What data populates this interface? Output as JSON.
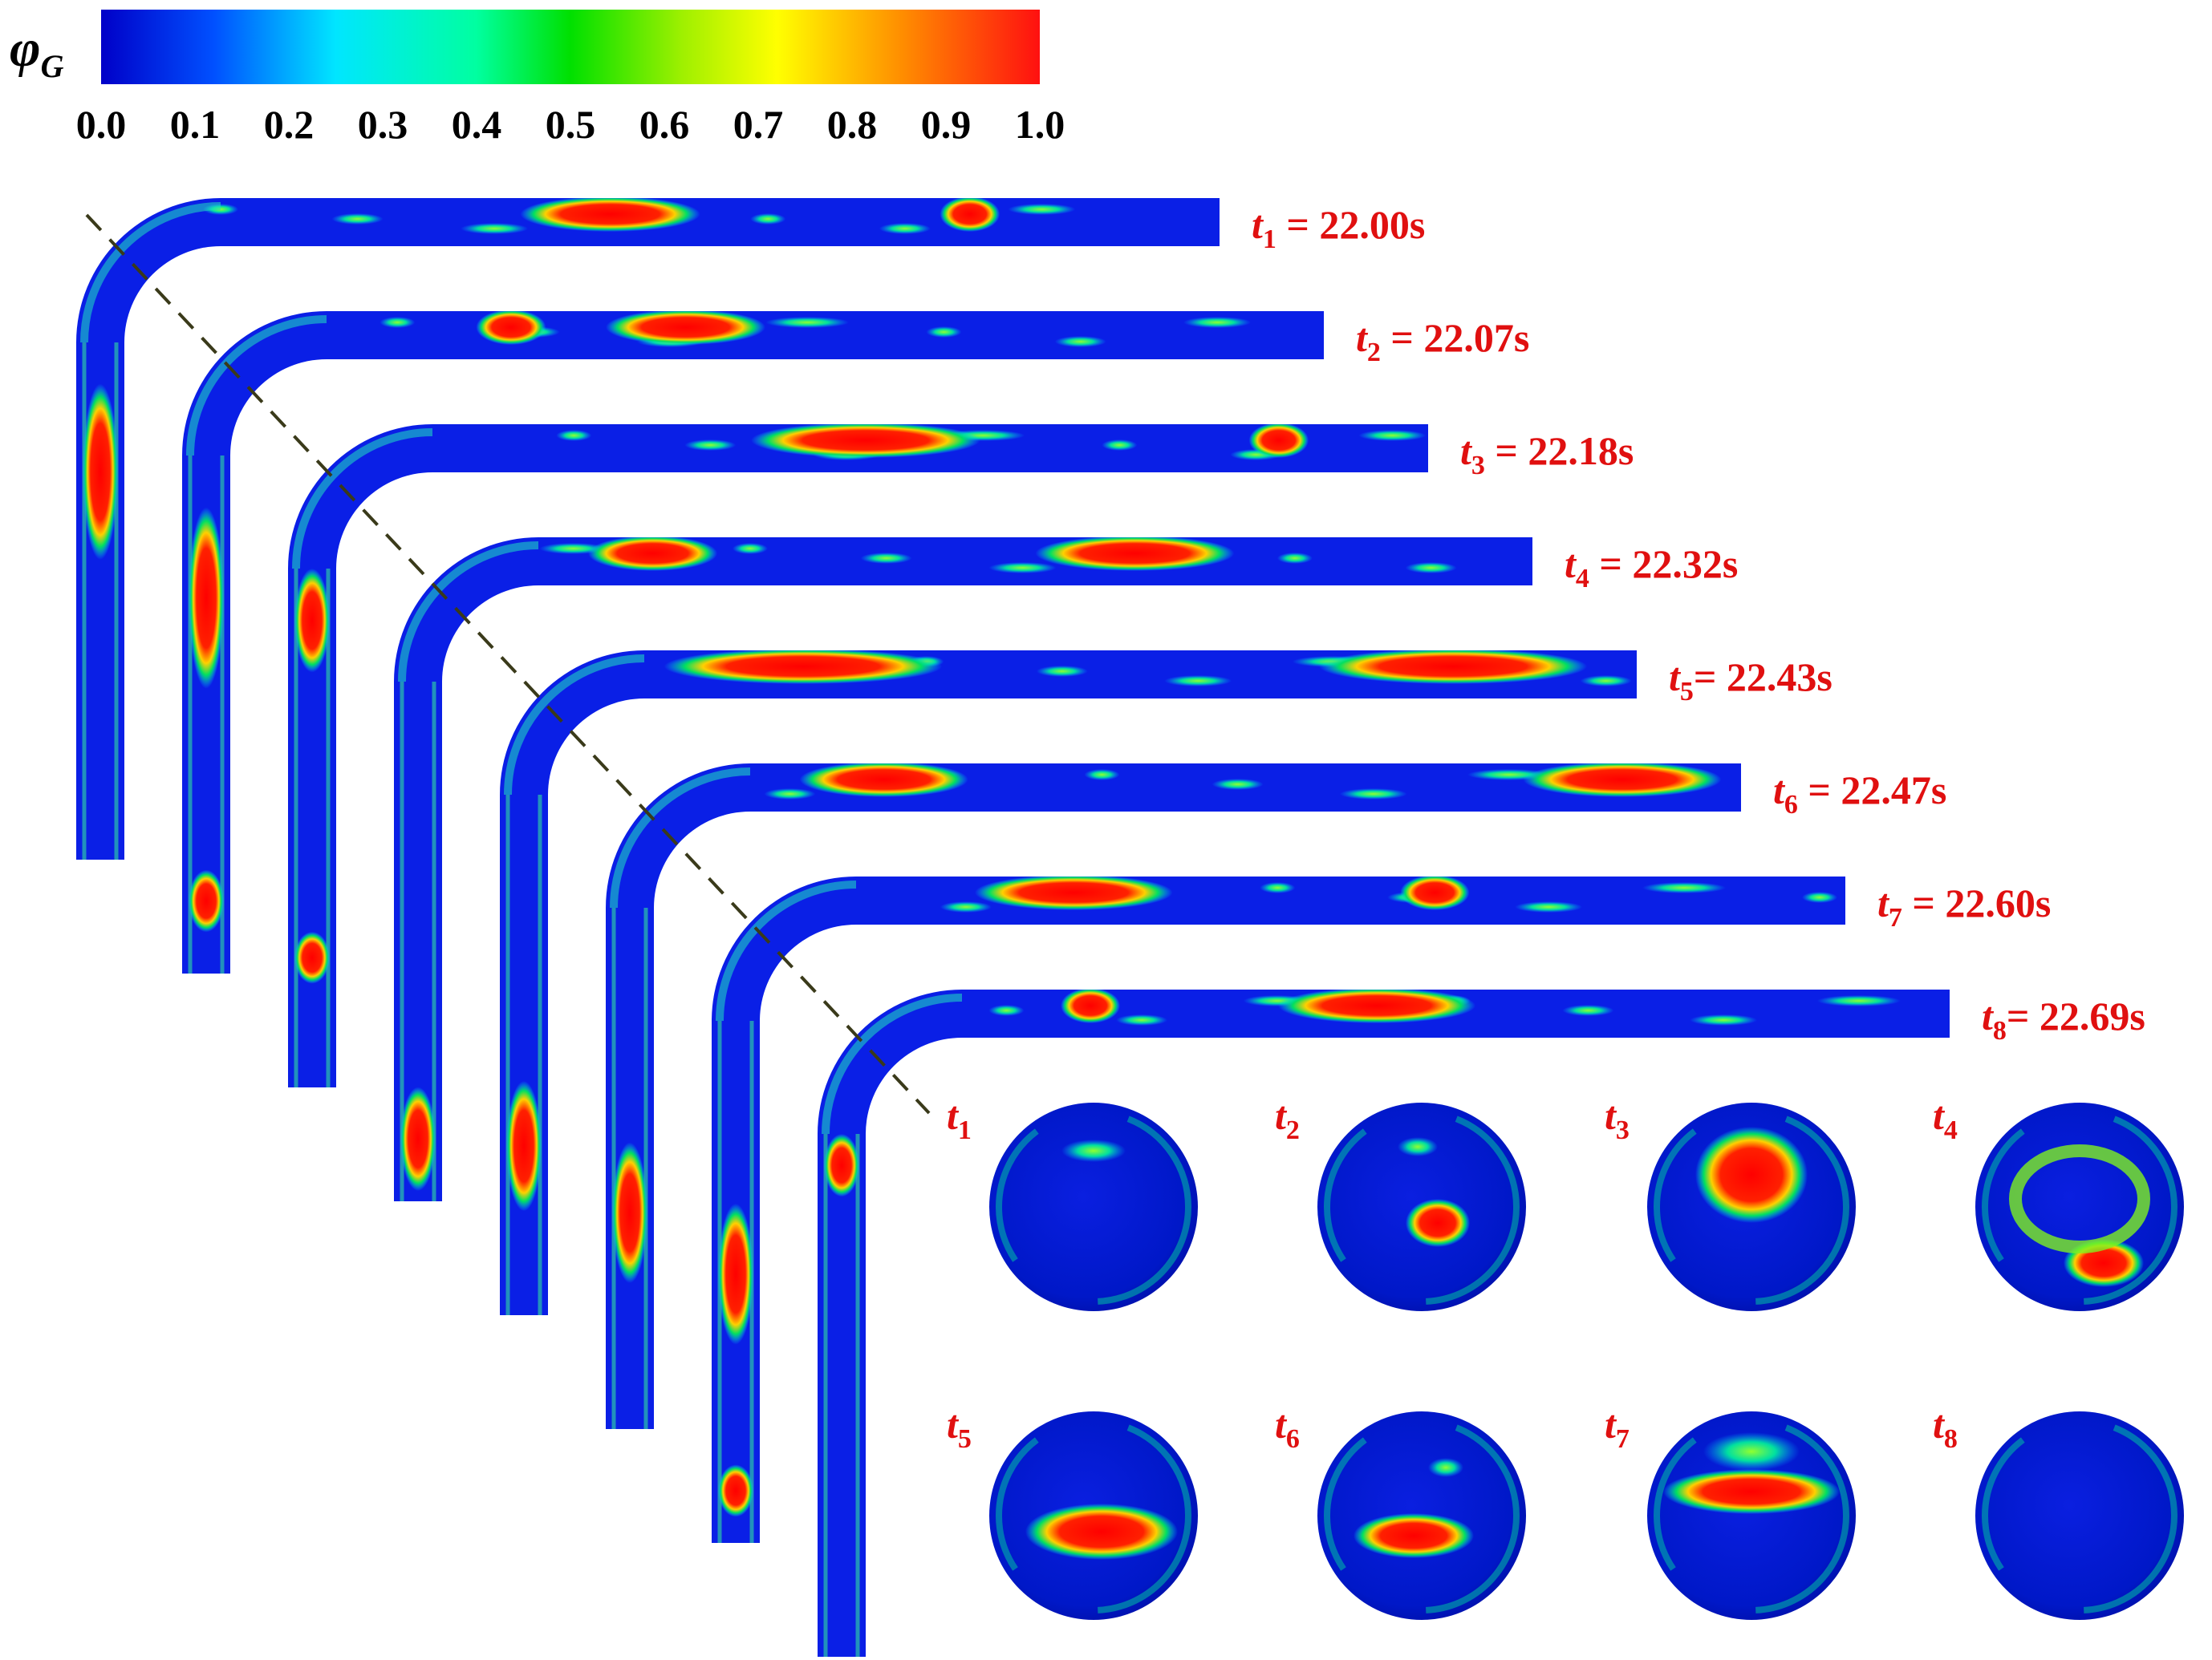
{
  "colorbar": {
    "symbol": "φ",
    "subscript": "G",
    "ticks": [
      "0.0",
      "0.1",
      "0.2",
      "0.3",
      "0.4",
      "0.5",
      "0.6",
      "0.7",
      "0.8",
      "0.9",
      "1.0"
    ],
    "colors": [
      "#0000c8",
      "#0050ff",
      "#00e6ff",
      "#00ffa0",
      "#00e000",
      "#a0f000",
      "#ffff00",
      "#ff9000",
      "#ff1010"
    ]
  },
  "snapshots": [
    {
      "t": "t",
      "sub": "1",
      "eq": " = ",
      "time": "22.00s"
    },
    {
      "t": "t",
      "sub": "2",
      "eq": " = ",
      "time": "22.07s"
    },
    {
      "t": "t",
      "sub": "3",
      "eq": "  = ",
      "time": "22.18s"
    },
    {
      "t": "t",
      "sub": "4",
      "eq": " = ",
      "time": "22.32s"
    },
    {
      "t": "t",
      "sub": "5",
      "eq": "= ",
      "time": "22.43s"
    },
    {
      "t": "t",
      "sub": "6",
      "eq": " = ",
      "time": "22.47s"
    },
    {
      "t": "t",
      "sub": "7",
      "eq": " = ",
      "time": "22.60s"
    },
    {
      "t": "t",
      "sub": "8",
      "eq": "= ",
      "time": "22.69s"
    }
  ],
  "section_labels": [
    {
      "t": "t",
      "sub": "1"
    },
    {
      "t": "t",
      "sub": "2"
    },
    {
      "t": "t",
      "sub": "3"
    },
    {
      "t": "t",
      "sub": "4"
    },
    {
      "t": "t",
      "sub": "5"
    },
    {
      "t": "t",
      "sub": "6"
    },
    {
      "t": "t",
      "sub": "7"
    },
    {
      "t": "t",
      "sub": "8"
    }
  ],
  "style": {
    "label_color": "#e01010",
    "liquid_color": "#0a1fe6",
    "gas_color": "#ff1a00"
  }
}
